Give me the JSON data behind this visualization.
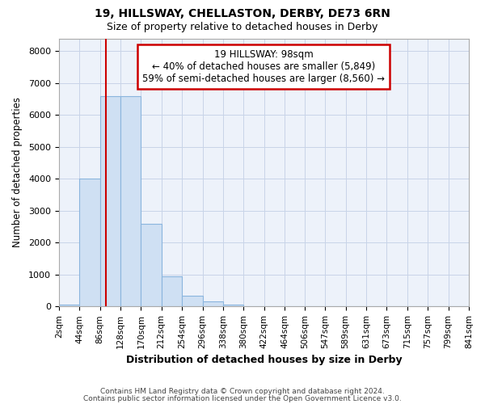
{
  "title1": "19, HILLSWAY, CHELLASTON, DERBY, DE73 6RN",
  "title2": "Size of property relative to detached houses in Derby",
  "xlabel": "Distribution of detached houses by size in Derby",
  "ylabel": "Number of detached properties",
  "footer1": "Contains HM Land Registry data © Crown copyright and database right 2024.",
  "footer2": "Contains public sector information licensed under the Open Government Licence v3.0.",
  "annotation_line1": "19 HILLSWAY: 98sqm",
  "annotation_line2": "← 40% of detached houses are smaller (5,849)",
  "annotation_line3": "59% of semi-detached houses are larger (8,560) →",
  "property_size": 98,
  "bar_edges": [
    2,
    44,
    86,
    128,
    170,
    212,
    254,
    296,
    338,
    380,
    422,
    464,
    506,
    547,
    589,
    631,
    673,
    715,
    757,
    799,
    841
  ],
  "bar_heights": [
    50,
    4000,
    6600,
    6600,
    2600,
    950,
    330,
    150,
    50,
    10,
    5,
    0,
    0,
    0,
    0,
    0,
    0,
    0,
    0,
    0
  ],
  "bar_color": "#cfe0f3",
  "bar_edge_color": "#8ab5de",
  "grid_color": "#c8d4e8",
  "plot_bg_color": "#edf2fa",
  "fig_bg_color": "#ffffff",
  "vline_color": "#cc0000",
  "box_edge_color": "#cc0000",
  "ylim": [
    0,
    8400
  ],
  "yticks": [
    0,
    1000,
    2000,
    3000,
    4000,
    5000,
    6000,
    7000,
    8000
  ],
  "tick_labels": [
    "2sqm",
    "44sqm",
    "86sqm",
    "128sqm",
    "170sqm",
    "212sqm",
    "254sqm",
    "296sqm",
    "338sqm",
    "380sqm",
    "422sqm",
    "464sqm",
    "506sqm",
    "547sqm",
    "589sqm",
    "631sqm",
    "673sqm",
    "715sqm",
    "757sqm",
    "799sqm",
    "841sqm"
  ]
}
